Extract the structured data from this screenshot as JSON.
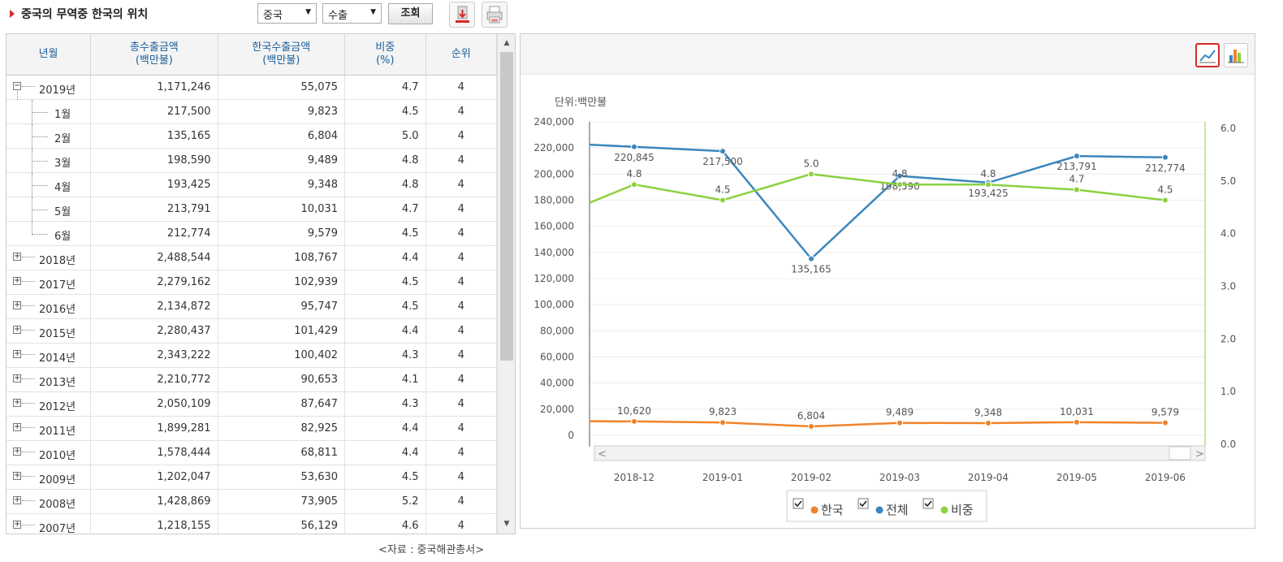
{
  "header": {
    "title": "중국의 무역중 한국의 위치",
    "country_select": "중국",
    "type_select": "수출",
    "search_label": "조회"
  },
  "table": {
    "columns": [
      "년월",
      "총수출금액\n(백만불)",
      "한국수출금액\n(백만불)",
      "비중\n(%)",
      "순위"
    ],
    "rows": [
      {
        "label": "2019년",
        "kind": "year",
        "expanded": true,
        "total": "1,171,246",
        "korea": "55,075",
        "share": "4.7",
        "rank": "4"
      },
      {
        "label": "1월",
        "kind": "month",
        "total": "217,500",
        "korea": "9,823",
        "share": "4.5",
        "rank": "4"
      },
      {
        "label": "2월",
        "kind": "month",
        "total": "135,165",
        "korea": "6,804",
        "share": "5.0",
        "rank": "4"
      },
      {
        "label": "3월",
        "kind": "month",
        "total": "198,590",
        "korea": "9,489",
        "share": "4.8",
        "rank": "4"
      },
      {
        "label": "4월",
        "kind": "month",
        "total": "193,425",
        "korea": "9,348",
        "share": "4.8",
        "rank": "4"
      },
      {
        "label": "5월",
        "kind": "month",
        "total": "213,791",
        "korea": "10,031",
        "share": "4.7",
        "rank": "4"
      },
      {
        "label": "6월",
        "kind": "month",
        "last": true,
        "total": "212,774",
        "korea": "9,579",
        "share": "4.5",
        "rank": "4"
      },
      {
        "label": "2018년",
        "kind": "year",
        "total": "2,488,544",
        "korea": "108,767",
        "share": "4.4",
        "rank": "4"
      },
      {
        "label": "2017년",
        "kind": "year",
        "total": "2,279,162",
        "korea": "102,939",
        "share": "4.5",
        "rank": "4"
      },
      {
        "label": "2016년",
        "kind": "year",
        "total": "2,134,872",
        "korea": "95,747",
        "share": "4.5",
        "rank": "4"
      },
      {
        "label": "2015년",
        "kind": "year",
        "total": "2,280,437",
        "korea": "101,429",
        "share": "4.4",
        "rank": "4"
      },
      {
        "label": "2014년",
        "kind": "year",
        "total": "2,343,222",
        "korea": "100,402",
        "share": "4.3",
        "rank": "4"
      },
      {
        "label": "2013년",
        "kind": "year",
        "total": "2,210,772",
        "korea": "90,653",
        "share": "4.1",
        "rank": "4"
      },
      {
        "label": "2012년",
        "kind": "year",
        "total": "2,050,109",
        "korea": "87,647",
        "share": "4.3",
        "rank": "4"
      },
      {
        "label": "2011년",
        "kind": "year",
        "total": "1,899,281",
        "korea": "82,925",
        "share": "4.4",
        "rank": "4"
      },
      {
        "label": "2010년",
        "kind": "year",
        "total": "1,578,444",
        "korea": "68,811",
        "share": "4.4",
        "rank": "4"
      },
      {
        "label": "2009년",
        "kind": "year",
        "total": "1,202,047",
        "korea": "53,630",
        "share": "4.5",
        "rank": "4"
      },
      {
        "label": "2008년",
        "kind": "year",
        "total": "1,428,869",
        "korea": "73,905",
        "share": "5.2",
        "rank": "4"
      },
      {
        "label": "2007년",
        "kind": "year",
        "total": "1,218,155",
        "korea": "56,129",
        "share": "4.6",
        "rank": "4"
      }
    ]
  },
  "chart_data": {
    "type": "line",
    "unit_label": "단위:백만불",
    "x": [
      "2018-12",
      "2019-01",
      "2019-02",
      "2019-03",
      "2019-04",
      "2019-05",
      "2019-06"
    ],
    "y_left_ticks": [
      "240,000",
      "220,000",
      "200,000",
      "180,000",
      "160,000",
      "140,000",
      "120,000",
      "100,000",
      "80,000",
      "60,000",
      "40,000",
      "20,000",
      "0"
    ],
    "y_right_ticks": [
      "6.0",
      "5.0",
      "4.0",
      "3.0",
      "2.0",
      "1.0",
      "0.0"
    ],
    "ylim_left": [
      0,
      240000
    ],
    "ylim_right": [
      0,
      6.0
    ],
    "series": [
      {
        "name": "한국",
        "axis": "left",
        "color": "#f0832b",
        "values": [
          10620,
          9823,
          6804,
          9489,
          9348,
          10031,
          9579
        ],
        "labels": [
          "10,620",
          "9,823",
          "6,804",
          "9,489",
          "9,348",
          "10,031",
          "9,579"
        ]
      },
      {
        "name": "전체",
        "axis": "left",
        "color": "#3b86bd",
        "values": [
          220845,
          217500,
          135165,
          198590,
          193425,
          213791,
          212774
        ],
        "labels": [
          "220,845",
          "217,500",
          "135,165",
          "198,590",
          "193,425",
          "213,791",
          "212,774"
        ]
      },
      {
        "name": "비중",
        "axis": "right",
        "color": "#8bd13f",
        "values": [
          4.8,
          4.5,
          5.0,
          4.8,
          4.8,
          4.7,
          4.5
        ],
        "labels": [
          "4.8",
          "4.5",
          "5.0",
          "4.8",
          "4.8",
          "4.7",
          "4.5"
        ]
      }
    ],
    "legend_position": "bottom",
    "grid": true
  },
  "footer": {
    "source": "<자료 : 중국해관총서>"
  }
}
